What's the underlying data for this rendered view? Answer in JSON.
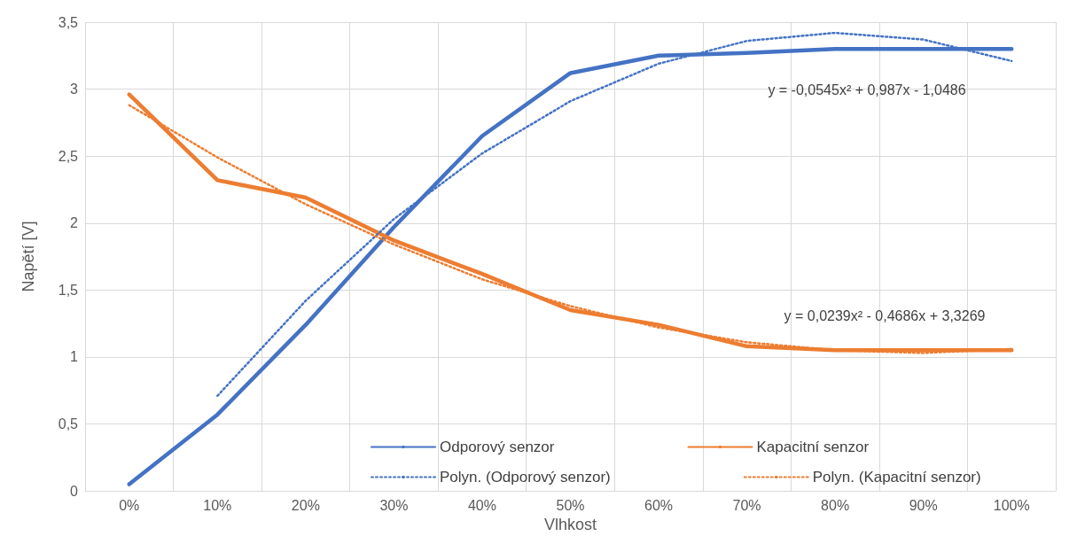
{
  "chart_data": {
    "type": "line",
    "xlabel": "Vlhkost",
    "ylabel": "Napětí [V]",
    "categories": [
      "0%",
      "10%",
      "20%",
      "30%",
      "40%",
      "50%",
      "60%",
      "70%",
      "80%",
      "90%",
      "100%"
    ],
    "series": [
      {
        "name": "Odporový senzor",
        "color": "#4472c4",
        "values": [
          0.05,
          0.57,
          1.24,
          1.97,
          2.65,
          3.12,
          3.25,
          3.27,
          3.3,
          3.3,
          3.3
        ]
      },
      {
        "name": "Kapacitní senzor",
        "color": "#ed7d31",
        "values": [
          2.96,
          2.32,
          2.19,
          1.87,
          1.62,
          1.35,
          1.24,
          1.08,
          1.05,
          1.05,
          1.05
        ]
      },
      {
        "name": "Polyn. (Odporový senzor)",
        "color": "#4472c4",
        "line_style": "dotted",
        "values": [
          null,
          0.71,
          1.42,
          2.03,
          2.52,
          2.91,
          3.19,
          3.36,
          3.42,
          3.37,
          3.21
        ]
      },
      {
        "name": "Polyn. (Kapacitní senzor)",
        "color": "#ed7d31",
        "line_style": "dotted",
        "values": [
          2.88,
          2.49,
          2.14,
          1.84,
          1.58,
          1.38,
          1.22,
          1.11,
          1.05,
          1.03,
          1.06
        ]
      }
    ],
    "ylim": [
      0,
      3.5
    ],
    "yticks": [
      0,
      {
        "value": 0.5,
        "label": "0,5"
      },
      1,
      {
        "value": 1.5,
        "label": "1,5"
      },
      2,
      {
        "value": 2.5,
        "label": "2,5"
      },
      3,
      {
        "value": 3.5,
        "label": "3,5"
      }
    ],
    "grid": true,
    "legend": "bottom",
    "marker": "none",
    "line_style": "solid",
    "annotations": [
      "y = -0,0545x² + 0,987x - 1,0486",
      "y = 0,0239x² - 0,4686x + 3,3269"
    ]
  }
}
